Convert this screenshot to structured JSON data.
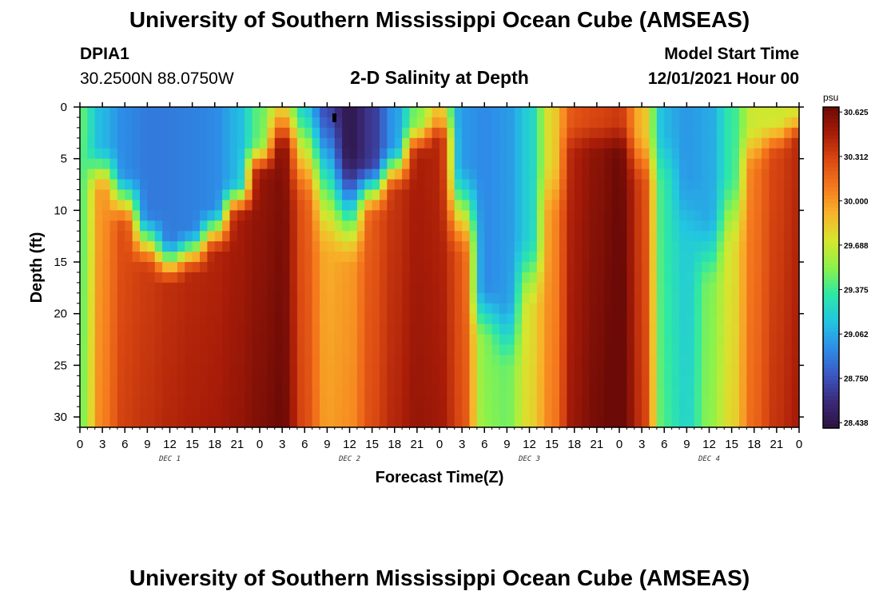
{
  "page": {
    "title": "University of Southern Mississippi Ocean Cube (AMSEAS)",
    "title_repeat": "University of Southern Mississippi Ocean Cube (AMSEAS)",
    "station_id": "DPIA1",
    "station_coords": "30.2500N  88.0750W",
    "chart_heading": "2-D Salinity at Depth",
    "model_start_label": "Model Start Time",
    "model_start_value": "12/01/2021 Hour 00"
  },
  "chart_data": {
    "type": "heatmap",
    "title": "2-D Salinity at Depth",
    "xlabel": "Forecast Time(Z)",
    "ylabel": "Depth (ft)",
    "x_hours_range": [
      0,
      96
    ],
    "y_depth_range_ft": [
      0,
      31
    ],
    "y_inverted": true,
    "xticks_hours": [
      0,
      3,
      6,
      9,
      12,
      15,
      18,
      21,
      24,
      27,
      30,
      33,
      36,
      39,
      42,
      45,
      48,
      51,
      54,
      57,
      60,
      63,
      66,
      69,
      72,
      75,
      78,
      81,
      84,
      87,
      90,
      93,
      96
    ],
    "xtick_labels": [
      "0",
      "3",
      "6",
      "9",
      "12",
      "15",
      "18",
      "21",
      "0",
      "3",
      "6",
      "9",
      "12",
      "15",
      "18",
      "21",
      "0",
      "3",
      "6",
      "9",
      "12",
      "15",
      "18",
      "21",
      "0",
      "3",
      "6",
      "9",
      "12",
      "15",
      "18",
      "21",
      "0"
    ],
    "day_labels": [
      {
        "label": "DEC 1",
        "hour": 12
      },
      {
        "label": "DEC 2",
        "hour": 36
      },
      {
        "label": "DEC 3",
        "hour": 60
      },
      {
        "label": "DEC 4",
        "hour": 84
      }
    ],
    "yticks": [
      0,
      5,
      10,
      15,
      20,
      25,
      30
    ],
    "ytick_labels": [
      "0",
      "5",
      "10",
      "15",
      "20",
      "25",
      "30"
    ],
    "colorbar": {
      "unit": "psu",
      "min": 28.4,
      "max": 30.66,
      "ticks": [
        "30.625",
        "30.312",
        "30.000",
        "29.688",
        "29.375",
        "29.062",
        "28.750",
        "28.438"
      ],
      "colors": [
        "#2b1340",
        "#3b2a7a",
        "#3b58c4",
        "#2d8ee8",
        "#22c6e0",
        "#2ee8a6",
        "#8cf24a",
        "#d6e62e",
        "#f7b52a",
        "#f57a1d",
        "#db4a12",
        "#a81c08",
        "#6b0a06"
      ]
    },
    "columns": [
      {
        "t": 0,
        "surf": 29.45,
        "sal": 29.4,
        "thick": 4,
        "blend": 4
      },
      {
        "t": 3,
        "surf": 29.1,
        "sal": 30.0,
        "thick": 6,
        "blend": 5
      },
      {
        "t": 6,
        "surf": 28.95,
        "sal": 30.25,
        "thick": 9,
        "blend": 6
      },
      {
        "t": 9,
        "surf": 28.9,
        "sal": 30.3,
        "thick": 13,
        "blend": 6
      },
      {
        "t": 12,
        "surf": 28.9,
        "sal": 30.35,
        "thick": 15,
        "blend": 5
      },
      {
        "t": 15,
        "surf": 28.92,
        "sal": 30.38,
        "thick": 14,
        "blend": 5
      },
      {
        "t": 18,
        "surf": 28.95,
        "sal": 30.4,
        "thick": 12,
        "blend": 5
      },
      {
        "t": 21,
        "surf": 29.1,
        "sal": 30.45,
        "thick": 9,
        "blend": 4
      },
      {
        "t": 24,
        "surf": 29.45,
        "sal": 30.52,
        "thick": 5,
        "blend": 4
      },
      {
        "t": 27,
        "surf": 29.8,
        "sal": 30.58,
        "thick": 2,
        "blend": 5
      },
      {
        "t": 30,
        "surf": 29.1,
        "sal": 30.2,
        "thick": 4,
        "blend": 12
      },
      {
        "t": 33,
        "surf": 28.7,
        "sal": 29.9,
        "thick": 7,
        "blend": 16
      },
      {
        "t": 36,
        "surf": 28.45,
        "sal": 29.95,
        "thick": 10,
        "blend": 12
      },
      {
        "t": 39,
        "surf": 28.65,
        "sal": 30.2,
        "thick": 8,
        "blend": 6
      },
      {
        "t": 42,
        "surf": 29.0,
        "sal": 30.35,
        "thick": 6,
        "blend": 5
      },
      {
        "t": 45,
        "surf": 29.5,
        "sal": 30.45,
        "thick": 3,
        "blend": 4
      },
      {
        "t": 48,
        "surf": 29.9,
        "sal": 30.42,
        "thick": 2,
        "blend": 3
      },
      {
        "t": 51,
        "surf": 29.0,
        "sal": 30.2,
        "thick": 10,
        "blend": 10
      },
      {
        "t": 54,
        "surf": 28.95,
        "sal": 29.45,
        "thick": 20,
        "blend": 6
      },
      {
        "t": 57,
        "surf": 29.0,
        "sal": 29.4,
        "thick": 22,
        "blend": 8
      },
      {
        "t": 60,
        "surf": 29.2,
        "sal": 29.7,
        "thick": 16,
        "blend": 8
      },
      {
        "t": 63,
        "surf": 29.8,
        "sal": 30.0,
        "thick": 8,
        "blend": 6
      },
      {
        "t": 66,
        "surf": 30.25,
        "sal": 30.45,
        "thick": 3,
        "blend": 4
      },
      {
        "t": 69,
        "surf": 30.3,
        "sal": 30.55,
        "thick": 3,
        "blend": 4
      },
      {
        "t": 72,
        "surf": 30.35,
        "sal": 30.64,
        "thick": 3,
        "blend": 4
      },
      {
        "t": 75,
        "surf": 29.9,
        "sal": 30.3,
        "thick": 5,
        "blend": 6
      },
      {
        "t": 78,
        "surf": 29.1,
        "sal": 29.3,
        "thick": 5,
        "blend": 6
      },
      {
        "t": 81,
        "surf": 29.0,
        "sal": 29.15,
        "thick": 10,
        "blend": 8
      },
      {
        "t": 84,
        "surf": 29.05,
        "sal": 29.45,
        "thick": 14,
        "blend": 8
      },
      {
        "t": 87,
        "surf": 29.35,
        "sal": 29.7,
        "thick": 10,
        "blend": 8
      },
      {
        "t": 90,
        "surf": 29.7,
        "sal": 30.1,
        "thick": 4,
        "blend": 5
      },
      {
        "t": 93,
        "surf": 29.7,
        "sal": 30.3,
        "thick": 3,
        "blend": 4
      },
      {
        "t": 96,
        "surf": 29.75,
        "sal": 30.4,
        "thick": 2,
        "blend": 3
      }
    ]
  }
}
